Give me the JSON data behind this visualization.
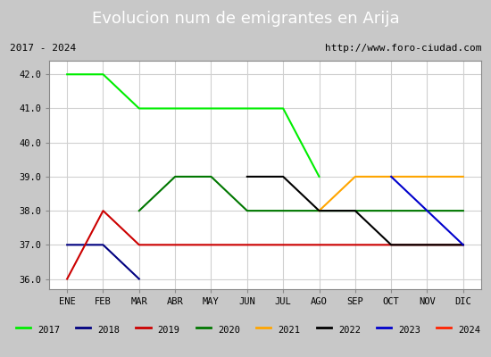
{
  "title": "Evolucion num de emigrantes en Arija",
  "subtitle_left": "2017 - 2024",
  "subtitle_right": "http://www.foro-ciudad.com",
  "ylim": [
    35.7,
    42.4
  ],
  "yticks": [
    36.0,
    37.0,
    38.0,
    39.0,
    40.0,
    41.0,
    42.0
  ],
  "months": [
    "ENE",
    "FEB",
    "MAR",
    "ABR",
    "MAY",
    "JUN",
    "JUL",
    "AGO",
    "SEP",
    "OCT",
    "NOV",
    "DIC"
  ],
  "fig_bg_color": "#c8c8c8",
  "plot_bg_color": "#ffffff",
  "title_bg_color": "#5b8dd9",
  "title_color": "#ffffff",
  "subtitle_box_color": "#ffffff",
  "subtitle_box_edge": "#000000",
  "grid_color": "#d0d0d0",
  "series": [
    {
      "year": "2017",
      "color": "#00ee00",
      "x": [
        0,
        1,
        2,
        3,
        4,
        5,
        6,
        7
      ],
      "y": [
        42.0,
        42.0,
        41.0,
        41.0,
        41.0,
        41.0,
        41.0,
        39.0
      ]
    },
    {
      "year": "2018",
      "color": "#000080",
      "x": [
        0,
        1,
        2
      ],
      "y": [
        37.0,
        37.0,
        36.0
      ]
    },
    {
      "year": "2019",
      "color": "#cc0000",
      "x": [
        0,
        1,
        2,
        3,
        4,
        5,
        6,
        7,
        8,
        9,
        10,
        11
      ],
      "y": [
        36.0,
        38.0,
        37.0,
        37.0,
        37.0,
        37.0,
        37.0,
        37.0,
        37.0,
        37.0,
        37.0,
        37.0
      ]
    },
    {
      "year": "2020",
      "color": "#007700",
      "x": [
        2,
        3,
        4,
        5,
        6,
        7,
        8,
        9,
        10,
        11
      ],
      "y": [
        38.0,
        39.0,
        39.0,
        38.0,
        38.0,
        38.0,
        38.0,
        38.0,
        38.0,
        38.0
      ]
    },
    {
      "year": "2021",
      "color": "#ffa500",
      "x": [
        7,
        8,
        9,
        10,
        11
      ],
      "y": [
        38.0,
        39.0,
        39.0,
        39.0,
        39.0
      ]
    },
    {
      "year": "2022",
      "color": "#000000",
      "x": [
        5,
        6,
        7,
        8,
        9,
        10,
        11
      ],
      "y": [
        39.0,
        39.0,
        38.0,
        38.0,
        37.0,
        37.0,
        37.0
      ]
    },
    {
      "year": "2023",
      "color": "#0000cc",
      "x": [
        9,
        10,
        11
      ],
      "y": [
        39.0,
        38.0,
        37.0
      ]
    },
    {
      "year": "2024",
      "color": "#ff2200",
      "x": [
        11,
        11
      ],
      "y": [
        37.0,
        37.0
      ]
    }
  ]
}
